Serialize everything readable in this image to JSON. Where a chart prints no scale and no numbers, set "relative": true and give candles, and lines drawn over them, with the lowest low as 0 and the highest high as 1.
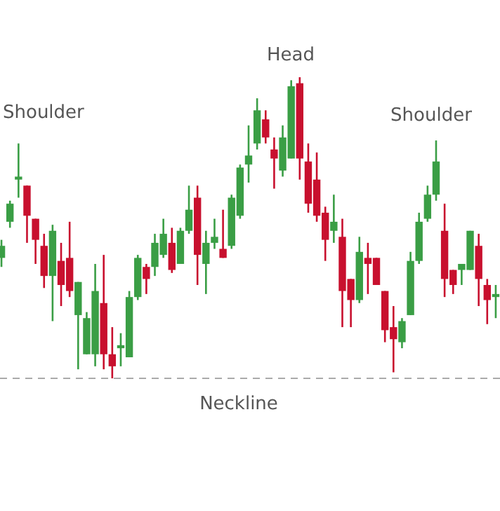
{
  "chart_data": {
    "type": "candlestick",
    "relative": true,
    "categories": [
      null,
      null,
      null,
      null,
      null,
      null,
      null,
      null,
      null,
      null,
      null,
      null,
      null,
      null,
      null,
      null,
      null,
      null,
      null,
      null,
      null,
      null,
      null,
      null,
      null,
      null,
      null,
      null,
      null,
      null,
      null,
      null,
      null,
      null,
      null,
      null,
      null,
      null,
      null,
      null,
      null,
      null,
      null,
      null,
      null,
      null,
      null,
      null,
      null,
      null,
      null,
      null,
      null,
      null,
      null,
      null,
      null,
      null,
      null
    ],
    "ohlc": [
      [
        0.4,
        0.46,
        0.37,
        0.44
      ],
      [
        0.52,
        0.59,
        0.5,
        0.58
      ],
      [
        0.66,
        0.78,
        0.6,
        0.67
      ],
      [
        0.64,
        0.64,
        0.45,
        0.54
      ],
      [
        0.53,
        0.53,
        0.38,
        0.46
      ],
      [
        0.44,
        0.48,
        0.3,
        0.34
      ],
      [
        0.34,
        0.51,
        0.19,
        0.49
      ],
      [
        0.39,
        0.45,
        0.24,
        0.31
      ],
      [
        0.4,
        0.52,
        0.27,
        0.29
      ],
      [
        0.21,
        0.32,
        0.03,
        0.32
      ],
      [
        0.08,
        0.22,
        0.08,
        0.2
      ],
      [
        0.08,
        0.38,
        0.04,
        0.29
      ],
      [
        0.25,
        0.41,
        0.03,
        0.08
      ],
      [
        0.08,
        0.17,
        0,
        0.04
      ],
      [
        0.1,
        0.15,
        0.04,
        0.11
      ],
      [
        0.07,
        0.29,
        0.07,
        0.27
      ],
      [
        0.27,
        0.41,
        0.26,
        0.4
      ],
      [
        0.37,
        0.38,
        0.28,
        0.33
      ],
      [
        0.37,
        0.48,
        0.34,
        0.45
      ],
      [
        0.41,
        0.53,
        0.4,
        0.48
      ],
      [
        0.45,
        0.5,
        0.35,
        0.36
      ],
      [
        0.38,
        0.5,
        0.38,
        0.49
      ],
      [
        0.49,
        0.64,
        0.48,
        0.56
      ],
      [
        0.6,
        0.64,
        0.31,
        0.41
      ],
      [
        0.38,
        0.49,
        0.28,
        0.45
      ],
      [
        0.45,
        0.53,
        0.43,
        0.47
      ],
      [
        0.43,
        0.56,
        0.4,
        0.4
      ],
      [
        0.44,
        0.61,
        0.43,
        0.6
      ],
      [
        0.54,
        0.71,
        0.53,
        0.7
      ],
      [
        0.71,
        0.84,
        0.65,
        0.74
      ],
      [
        0.78,
        0.93,
        0.76,
        0.89
      ],
      [
        0.86,
        0.89,
        0.78,
        0.8
      ],
      [
        0.76,
        0.8,
        0.63,
        0.73
      ],
      [
        0.69,
        0.84,
        0.67,
        0.8
      ],
      [
        0.73,
        0.99,
        0.73,
        0.97
      ],
      [
        0.98,
        1,
        0.66,
        0.73
      ],
      [
        0.72,
        0.78,
        0.55,
        0.58
      ],
      [
        0.66,
        0.75,
        0.52,
        0.54
      ],
      [
        0.55,
        0.57,
        0.39,
        0.46
      ],
      [
        0.49,
        0.61,
        0.45,
        0.52
      ],
      [
        0.47,
        0.53,
        0.17,
        0.29
      ],
      [
        0.33,
        0.33,
        0.17,
        0.26
      ],
      [
        0.26,
        0.47,
        0.25,
        0.42
      ],
      [
        0.4,
        0.45,
        0.28,
        0.38
      ],
      [
        0.4,
        0.4,
        0.31,
        0.31
      ],
      [
        0.29,
        0.29,
        0.12,
        0.16
      ],
      [
        0.17,
        0.24,
        0.02,
        0.13
      ],
      [
        0.12,
        0.2,
        0.1,
        0.19
      ],
      [
        0.21,
        0.42,
        0.21,
        0.39
      ],
      [
        0.39,
        0.55,
        0.38,
        0.52
      ],
      [
        0.53,
        0.64,
        0.52,
        0.61
      ],
      [
        0.61,
        0.79,
        0.59,
        0.72
      ],
      [
        0.49,
        0.58,
        0.27,
        0.33
      ],
      [
        0.36,
        0.36,
        0.28,
        0.31
      ],
      [
        0.36,
        0.38,
        0.31,
        0.38
      ],
      [
        0.36,
        0.49,
        0.36,
        0.49
      ],
      [
        0.44,
        0.48,
        0.24,
        0.33
      ],
      [
        0.31,
        0.33,
        0.18,
        0.26
      ],
      [
        0.27,
        0.31,
        0.2,
        0.28
      ]
    ],
    "colors": [
      "#3a9e45",
      "#3a9e45",
      "#3a9e45",
      "#c8102e",
      "#c8102e",
      "#c8102e",
      "#3a9e45",
      "#c8102e",
      "#c8102e",
      "#3a9e45",
      "#3a9e45",
      "#3a9e45",
      "#c8102e",
      "#c8102e",
      "#3a9e45",
      "#3a9e45",
      "#3a9e45",
      "#c8102e",
      "#3a9e45",
      "#3a9e45",
      "#c8102e",
      "#3a9e45",
      "#3a9e45",
      "#c8102e",
      "#3a9e45",
      "#3a9e45",
      "#c8102e",
      "#3a9e45",
      "#3a9e45",
      "#3a9e45",
      "#3a9e45",
      "#c8102e",
      "#c8102e",
      "#3a9e45",
      "#3a9e45",
      "#c8102e",
      "#c8102e",
      "#c8102e",
      "#c8102e",
      "#3a9e45",
      "#c8102e",
      "#c8102e",
      "#3a9e45",
      "#c8102e",
      "#c8102e",
      "#c8102e",
      "#c8102e",
      "#3a9e45",
      "#3a9e45",
      "#3a9e45",
      "#3a9e45",
      "#3a9e45",
      "#c8102e",
      "#c8102e",
      "#3a9e45",
      "#3a9e45",
      "#c8102e",
      "#c8102e",
      "#3a9e45"
    ],
    "annotations": [
      "Shoulder",
      "Head",
      "Shoulder"
    ],
    "ref_lines": [
      {
        "axis": "y",
        "value": 0,
        "label": "Neckline",
        "color": "#aaaaaa",
        "line_style": "dashed"
      }
    ]
  }
}
